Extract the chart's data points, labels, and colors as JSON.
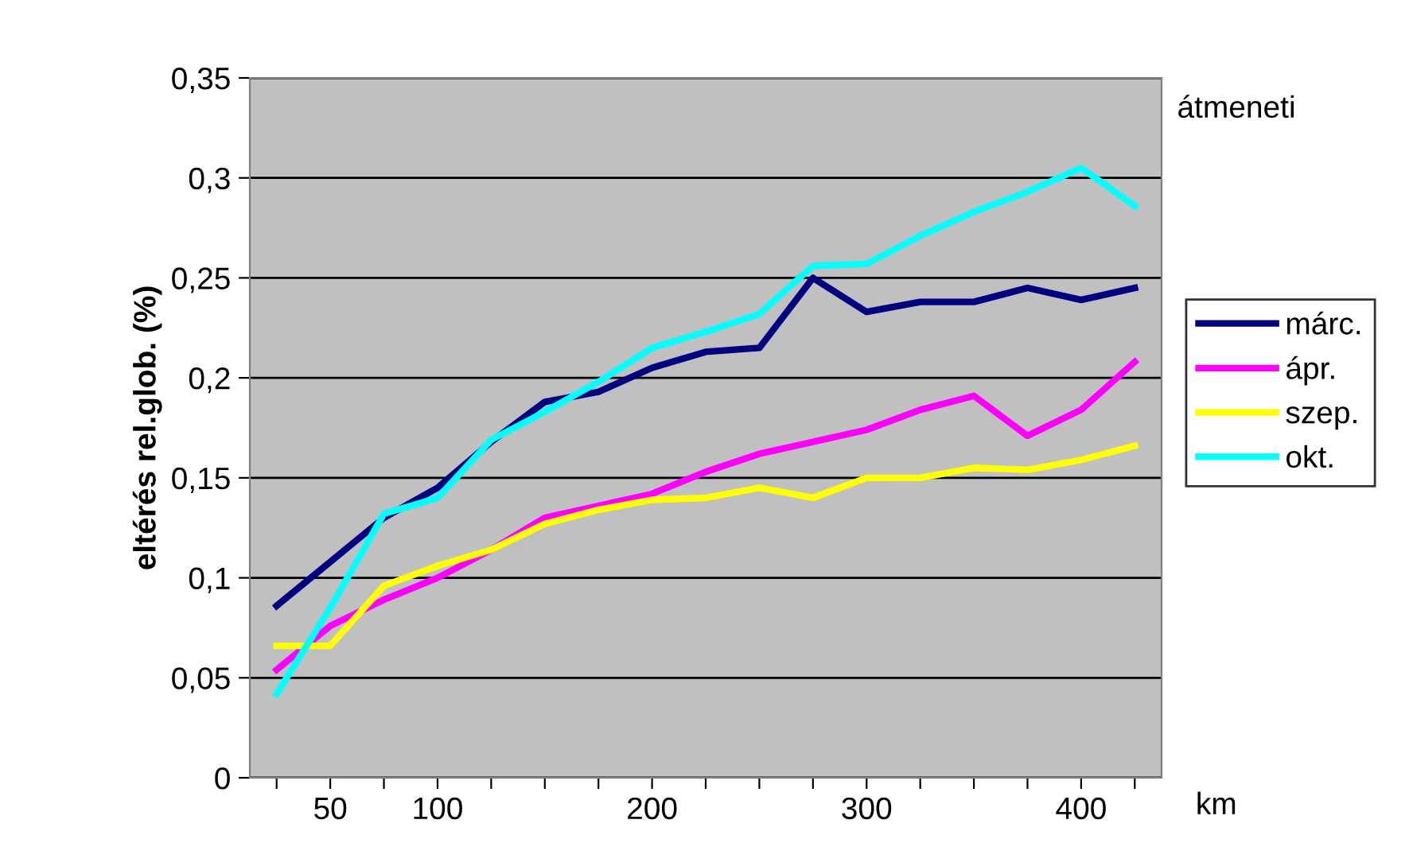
{
  "chart_data": {
    "type": "line",
    "title": "átmeneti",
    "xlabel": "km",
    "ylabel": "eltérés rel.glob. (%)",
    "categories": [
      null,
      "50",
      null,
      "100",
      null,
      null,
      null,
      "200",
      null,
      null,
      null,
      "300",
      null,
      null,
      null,
      "400",
      null
    ],
    "series": [
      {
        "name": "márc.",
        "color": "#000080",
        "values": [
          0.086,
          0.108,
          0.13,
          0.145,
          0.168,
          0.188,
          0.193,
          0.205,
          0.213,
          0.215,
          0.25,
          0.233,
          0.238,
          0.238,
          0.245,
          0.239,
          0.245
        ]
      },
      {
        "name": "ápr.",
        "color": "#ff00ff",
        "values": [
          0.054,
          0.076,
          0.089,
          0.1,
          0.114,
          0.13,
          0.136,
          0.142,
          0.153,
          0.162,
          0.168,
          0.174,
          0.184,
          0.191,
          0.171,
          0.184,
          0.208
        ]
      },
      {
        "name": "szep.",
        "color": "#ffff00",
        "values": [
          0.066,
          0.066,
          0.096,
          0.106,
          0.114,
          0.127,
          0.134,
          0.139,
          0.14,
          0.145,
          0.14,
          0.15,
          0.15,
          0.155,
          0.154,
          0.159,
          0.166
        ]
      },
      {
        "name": "okt.",
        "color": "#00ffff",
        "values": [
          0.042,
          0.085,
          0.132,
          0.14,
          0.169,
          0.183,
          0.198,
          0.215,
          0.223,
          0.232,
          0.256,
          0.257,
          0.271,
          0.283,
          0.293,
          0.305,
          0.286
        ]
      }
    ],
    "ylim": [
      0,
      0.35
    ],
    "yticks": [
      0,
      {
        "value": 0.05,
        "label": "0,05"
      },
      {
        "value": 0.1,
        "label": "0,1"
      },
      {
        "value": 0.15,
        "label": "0,15"
      },
      {
        "value": 0.2,
        "label": "0,2"
      },
      {
        "value": 0.25,
        "label": "0,25"
      },
      {
        "value": 0.3,
        "label": "0,3"
      },
      {
        "value": 0.35,
        "label": "0,35"
      }
    ],
    "grid": "y",
    "legend": "right",
    "marker": "none",
    "line_style": "solid"
  }
}
